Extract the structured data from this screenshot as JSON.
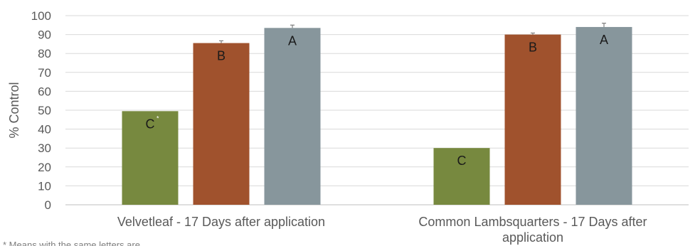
{
  "chart_data": {
    "type": "bar",
    "ylabel": "% Control",
    "ylim": [
      0,
      100
    ],
    "yticks": [
      0,
      10,
      20,
      30,
      40,
      50,
      60,
      70,
      80,
      90,
      100
    ],
    "grid": true,
    "categories": [
      [
        "Velvetleaf - 17  Days after application"
      ],
      [
        "Common Lambsquarters - 17 Days after",
        "application"
      ]
    ],
    "series": [
      {
        "color": "#77893f",
        "values": [
          49.5,
          30
        ],
        "errors": [
          0,
          0
        ],
        "labels": [
          "C",
          "C"
        ],
        "label_superscripts": [
          "*",
          ""
        ]
      },
      {
        "color": "#a0522d",
        "values": [
          85.5,
          90
        ],
        "errors": [
          1.2,
          0.8
        ],
        "labels": [
          "B",
          "B"
        ],
        "label_superscripts": [
          "",
          ""
        ]
      },
      {
        "color": "#87969c",
        "values": [
          93.5,
          94
        ],
        "errors": [
          1.5,
          2.0
        ],
        "labels": [
          "A",
          "A"
        ],
        "label_superscripts": [
          "",
          ""
        ]
      }
    ],
    "footnote": "* Means with the same letters are"
  }
}
